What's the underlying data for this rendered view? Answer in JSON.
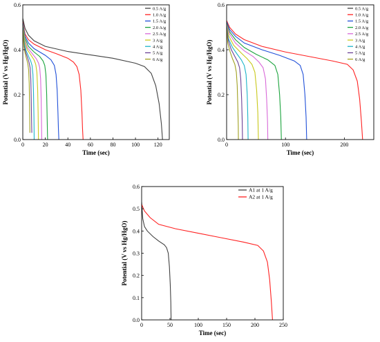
{
  "chart_data": [
    {
      "type": "line",
      "title": "",
      "xlabel": "Time (sec)",
      "ylabel": "Potential (V vs Hg/HgO)",
      "xlim": [
        0,
        130
      ],
      "ylim": [
        0,
        0.6
      ],
      "xticks": [
        0,
        20,
        40,
        60,
        80,
        100,
        120
      ],
      "yticks": [
        0.0,
        0.2,
        0.4,
        0.6
      ],
      "tick_labels_x": [
        "0",
        "20",
        "40",
        "60",
        "80",
        "100",
        "120"
      ],
      "tick_labels_y": [
        "0.0",
        "0.2",
        "0.4",
        "0.6"
      ],
      "legend": "top-right",
      "grid": false,
      "series": [
        {
          "name": "0.5 A/g",
          "color": "#404040",
          "points": [
            [
              0,
              0.54
            ],
            [
              2,
              0.495
            ],
            [
              5,
              0.465
            ],
            [
              10,
              0.44
            ],
            [
              20,
              0.415
            ],
            [
              40,
              0.392
            ],
            [
              60,
              0.377
            ],
            [
              80,
              0.362
            ],
            [
              100,
              0.34
            ],
            [
              108,
              0.325
            ],
            [
              114,
              0.295
            ],
            [
              118,
              0.24
            ],
            [
              121,
              0.16
            ],
            [
              123,
              0.07
            ],
            [
              124,
              0.0
            ]
          ]
        },
        {
          "name": "1.0 A/g",
          "color": "#ff2020",
          "points": [
            [
              0,
              0.525
            ],
            [
              2,
              0.47
            ],
            [
              5,
              0.445
            ],
            [
              10,
              0.425
            ],
            [
              20,
              0.4
            ],
            [
              30,
              0.382
            ],
            [
              40,
              0.362
            ],
            [
              45,
              0.345
            ],
            [
              48,
              0.325
            ],
            [
              50,
              0.29
            ],
            [
              51.5,
              0.22
            ],
            [
              52.5,
              0.12
            ],
            [
              53,
              0.05
            ],
            [
              53.5,
              0.0
            ]
          ]
        },
        {
          "name": "1.5 A/g",
          "color": "#1f4fd8",
          "points": [
            [
              0,
              0.52
            ],
            [
              2,
              0.46
            ],
            [
              5,
              0.43
            ],
            [
              10,
              0.405
            ],
            [
              15,
              0.39
            ],
            [
              20,
              0.375
            ],
            [
              25,
              0.355
            ],
            [
              28,
              0.33
            ],
            [
              29.5,
              0.29
            ],
            [
              30.5,
              0.22
            ],
            [
              31.2,
              0.12
            ],
            [
              31.6,
              0.05
            ],
            [
              32,
              0.0
            ]
          ]
        },
        {
          "name": "2.0 A/g",
          "color": "#1aa33c",
          "points": [
            [
              0,
              0.515
            ],
            [
              2,
              0.45
            ],
            [
              5,
              0.415
            ],
            [
              10,
              0.39
            ],
            [
              15,
              0.37
            ],
            [
              18,
              0.35
            ],
            [
              19.5,
              0.33
            ],
            [
              20.5,
              0.29
            ],
            [
              21.2,
              0.2
            ],
            [
              21.6,
              0.1
            ],
            [
              22,
              0.0
            ]
          ]
        },
        {
          "name": "2.5 A/g",
          "color": "#d868d8",
          "points": [
            [
              0,
              0.51
            ],
            [
              2,
              0.44
            ],
            [
              4,
              0.41
            ],
            [
              8,
              0.385
            ],
            [
              12,
              0.36
            ],
            [
              14,
              0.34
            ],
            [
              15,
              0.32
            ],
            [
              15.8,
              0.27
            ],
            [
              16.3,
              0.18
            ],
            [
              16.6,
              0.08
            ],
            [
              16.8,
              0.0
            ]
          ]
        },
        {
          "name": "3 A/g",
          "color": "#c8c81a",
          "points": [
            [
              0,
              0.505
            ],
            [
              2,
              0.43
            ],
            [
              4,
              0.4
            ],
            [
              7,
              0.378
            ],
            [
              10,
              0.355
            ],
            [
              11.5,
              0.335
            ],
            [
              12.5,
              0.3
            ],
            [
              13.2,
              0.22
            ],
            [
              13.6,
              0.12
            ],
            [
              13.9,
              0.0
            ]
          ]
        },
        {
          "name": "4 A/g",
          "color": "#1ab4c8",
          "points": [
            [
              0,
              0.5
            ],
            [
              1.5,
              0.425
            ],
            [
              3,
              0.395
            ],
            [
              5,
              0.372
            ],
            [
              7,
              0.35
            ],
            [
              8.2,
              0.33
            ],
            [
              9,
              0.29
            ],
            [
              9.5,
              0.21
            ],
            [
              9.9,
              0.1
            ],
            [
              10.1,
              0.0
            ]
          ]
        },
        {
          "name": "5 A/g",
          "color": "#6a3f95",
          "points": [
            [
              0,
              0.495
            ],
            [
              1.2,
              0.42
            ],
            [
              2.5,
              0.39
            ],
            [
              4,
              0.368
            ],
            [
              5.5,
              0.345
            ],
            [
              6.5,
              0.32
            ],
            [
              7.1,
              0.27
            ],
            [
              7.5,
              0.18
            ],
            [
              7.8,
              0.08
            ],
            [
              8,
              0.03
            ]
          ]
        },
        {
          "name": "6 A/g",
          "color": "#a0a020",
          "points": [
            [
              0,
              0.49
            ],
            [
              1,
              0.415
            ],
            [
              2,
              0.385
            ],
            [
              3.2,
              0.362
            ],
            [
              4.4,
              0.34
            ],
            [
              5.2,
              0.31
            ],
            [
              5.7,
              0.25
            ],
            [
              6,
              0.16
            ],
            [
              6.2,
              0.07
            ],
            [
              6.3,
              0.03
            ]
          ]
        }
      ]
    },
    {
      "type": "line",
      "title": "",
      "xlabel": "Time (sec)",
      "ylabel": "Potential (V vs Hg/HgO)",
      "xlim": [
        0,
        250
      ],
      "ylim": [
        0,
        0.6
      ],
      "xticks": [
        0,
        100,
        200
      ],
      "yticks": [
        0.0,
        0.2,
        0.4,
        0.6
      ],
      "tick_labels_x": [
        "0",
        "100",
        "200"
      ],
      "tick_labels_y": [
        "0.0",
        "0.2",
        "0.4",
        "0.6"
      ],
      "legend": "top-right",
      "grid": false,
      "series": [
        {
          "name": "0.5 A/g",
          "color": "#404040",
          "points": [
            [
              0,
              0.0
            ],
            [
              0.5,
              0.0
            ]
          ]
        },
        {
          "name": "1.0 A/g",
          "color": "#ff2020",
          "points": [
            [
              0,
              0.53
            ],
            [
              5,
              0.5
            ],
            [
              15,
              0.47
            ],
            [
              30,
              0.445
            ],
            [
              60,
              0.415
            ],
            [
              100,
              0.39
            ],
            [
              140,
              0.37
            ],
            [
              180,
              0.35
            ],
            [
              205,
              0.335
            ],
            [
              215,
              0.31
            ],
            [
              222,
              0.26
            ],
            [
              226,
              0.18
            ],
            [
              229,
              0.08
            ],
            [
              231,
              0.0
            ]
          ]
        },
        {
          "name": "1.5 A/g",
          "color": "#1f4fd8",
          "points": [
            [
              0,
              0.525
            ],
            [
              5,
              0.49
            ],
            [
              15,
              0.46
            ],
            [
              30,
              0.43
            ],
            [
              60,
              0.4
            ],
            [
              90,
              0.375
            ],
            [
              115,
              0.35
            ],
            [
              125,
              0.33
            ],
            [
              130,
              0.29
            ],
            [
              133,
              0.2
            ],
            [
              135,
              0.1
            ],
            [
              136,
              0.0
            ]
          ]
        },
        {
          "name": "2.0 A/g",
          "color": "#1aa33c",
          "points": [
            [
              0,
              0.52
            ],
            [
              5,
              0.48
            ],
            [
              15,
              0.445
            ],
            [
              30,
              0.41
            ],
            [
              50,
              0.38
            ],
            [
              70,
              0.355
            ],
            [
              82,
              0.33
            ],
            [
              87,
              0.29
            ],
            [
              90,
              0.2
            ],
            [
              92,
              0.1
            ],
            [
              93,
              0.0
            ]
          ]
        },
        {
          "name": "2.5 A/g",
          "color": "#d868d8",
          "points": [
            [
              0,
              0.515
            ],
            [
              5,
              0.47
            ],
            [
              15,
              0.43
            ],
            [
              30,
              0.395
            ],
            [
              45,
              0.37
            ],
            [
              55,
              0.345
            ],
            [
              62,
              0.32
            ],
            [
              66,
              0.27
            ],
            [
              68,
              0.18
            ],
            [
              69.5,
              0.08
            ],
            [
              70,
              0.0
            ]
          ]
        },
        {
          "name": "3 A/g",
          "color": "#c8c81a",
          "points": [
            [
              0,
              0.51
            ],
            [
              4,
              0.46
            ],
            [
              12,
              0.42
            ],
            [
              25,
              0.385
            ],
            [
              35,
              0.36
            ],
            [
              43,
              0.335
            ],
            [
              48,
              0.3
            ],
            [
              51,
              0.22
            ],
            [
              53,
              0.12
            ],
            [
              54,
              0.0
            ]
          ]
        },
        {
          "name": "4 A/g",
          "color": "#1ab4c8",
          "points": [
            [
              0,
              0.505
            ],
            [
              3,
              0.45
            ],
            [
              10,
              0.41
            ],
            [
              18,
              0.38
            ],
            [
              25,
              0.355
            ],
            [
              30,
              0.33
            ],
            [
              33,
              0.29
            ],
            [
              35,
              0.2
            ],
            [
              36,
              0.1
            ],
            [
              36.5,
              0.0
            ]
          ]
        },
        {
          "name": "5 A/g",
          "color": "#6a3f95",
          "points": [
            [
              0,
              0.5
            ],
            [
              3,
              0.44
            ],
            [
              8,
              0.4
            ],
            [
              14,
              0.37
            ],
            [
              19,
              0.345
            ],
            [
              22,
              0.32
            ],
            [
              24,
              0.27
            ],
            [
              25.5,
              0.18
            ],
            [
              26.5,
              0.08
            ],
            [
              27,
              0.0
            ]
          ]
        },
        {
          "name": "6 A/g",
          "color": "#a0a020",
          "points": [
            [
              0,
              0.495
            ],
            [
              2,
              0.43
            ],
            [
              6,
              0.39
            ],
            [
              10,
              0.36
            ],
            [
              14,
              0.335
            ],
            [
              16.5,
              0.3
            ],
            [
              18,
              0.24
            ],
            [
              19,
              0.15
            ],
            [
              19.8,
              0.06
            ],
            [
              20,
              0.0
            ]
          ]
        }
      ]
    },
    {
      "type": "line",
      "title": "",
      "xlabel": "Time (sec)",
      "ylabel": "Potential (V vs Hg/HgO)",
      "xlim": [
        0,
        250
      ],
      "ylim": [
        0,
        0.6
      ],
      "xticks": [
        0,
        50,
        100,
        150,
        200,
        250
      ],
      "yticks": [
        0.0,
        0.1,
        0.2,
        0.3,
        0.4,
        0.5,
        0.6
      ],
      "tick_labels_x": [
        "0",
        "50",
        "100",
        "150",
        "200",
        "250"
      ],
      "tick_labels_y": [
        "0.0",
        "0.1",
        "0.2",
        "0.3",
        "0.4",
        "0.5",
        "0.6"
      ],
      "legend": "top-right",
      "grid": false,
      "series": [
        {
          "name": "A1 at 1 A/g",
          "color": "#404040",
          "points": [
            [
              0,
              0.53
            ],
            [
              2,
              0.455
            ],
            [
              5,
              0.42
            ],
            [
              10,
              0.4
            ],
            [
              20,
              0.375
            ],
            [
              30,
              0.355
            ],
            [
              40,
              0.338
            ],
            [
              44,
              0.325
            ],
            [
              47,
              0.3
            ],
            [
              49,
              0.24
            ],
            [
              50.5,
              0.16
            ],
            [
              51.5,
              0.08
            ],
            [
              52,
              0.0
            ]
          ]
        },
        {
          "name": "A2 at 1 A/g",
          "color": "#ff2020",
          "points": [
            [
              0,
              0.52
            ],
            [
              5,
              0.49
            ],
            [
              15,
              0.46
            ],
            [
              30,
              0.43
            ],
            [
              60,
              0.41
            ],
            [
              100,
              0.39
            ],
            [
              140,
              0.37
            ],
            [
              180,
              0.35
            ],
            [
              205,
              0.335
            ],
            [
              215,
              0.31
            ],
            [
              222,
              0.26
            ],
            [
              226,
              0.18
            ],
            [
              229,
              0.08
            ],
            [
              231,
              0.0
            ]
          ]
        }
      ]
    }
  ]
}
